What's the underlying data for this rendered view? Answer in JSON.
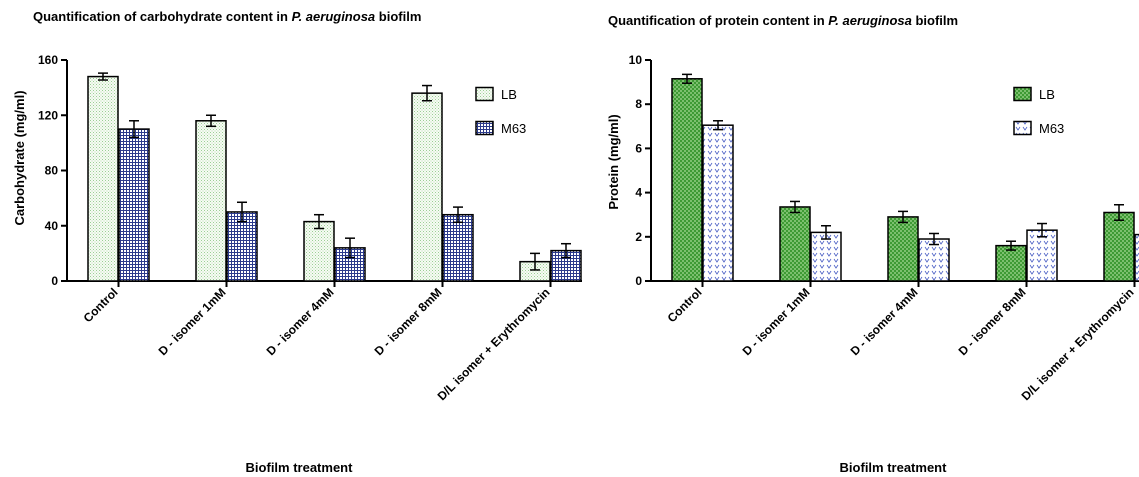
{
  "chart_data": [
    {
      "type": "bar",
      "title": {
        "prefix": "Quantification of carbohydrate content in ",
        "italic": "P. aeruginosa",
        "suffix": " biofilm"
      },
      "xlabel": "Biofilm treatment",
      "ylabel": "Carbohydrate (mg/ml)",
      "ylim": [
        0,
        160
      ],
      "yticks": [
        "0",
        "40",
        "80",
        "120",
        "160"
      ],
      "categories": [
        "Control",
        "D - isomer 1mM",
        "D - isomer 4mM",
        "D - isomer 8mM",
        "D/L isomer + Erythromycin"
      ],
      "legend_position": "top-right",
      "grid": false,
      "series": [
        {
          "name": "LB",
          "pattern": "lb-dots",
          "values": [
            148,
            116,
            43,
            136,
            14
          ],
          "errors": [
            2.5,
            4,
            5,
            5.5,
            6
          ]
        },
        {
          "name": "M63",
          "pattern": "m63-grid",
          "values": [
            110,
            50,
            24,
            48,
            22
          ],
          "errors": [
            6,
            7,
            7,
            5.5,
            5
          ]
        }
      ]
    },
    {
      "type": "bar",
      "title": {
        "prefix": "Quantification of protein content in ",
        "italic": "P. aeruginosa",
        "suffix": " biofilm"
      },
      "xlabel": "Biofilm treatment",
      "ylabel": "Protein (mg/ml)",
      "ylim": [
        0,
        10
      ],
      "yticks": [
        "0",
        "2",
        "4",
        "6",
        "8",
        "10"
      ],
      "categories": [
        "Control",
        "D - isomer 1mM",
        "D - isomer 4mM",
        "D - isomer 8mM",
        "D/L isomer + Erythromycin"
      ],
      "legend_position": "top-right",
      "grid": false,
      "series": [
        {
          "name": "LB",
          "pattern": "green-check",
          "values": [
            9.15,
            3.35,
            2.9,
            1.6,
            3.1
          ],
          "errors": [
            0.2,
            0.25,
            0.25,
            0.2,
            0.35
          ]
        },
        {
          "name": "M63",
          "pattern": "blue-vees",
          "values": [
            7.05,
            2.2,
            1.9,
            2.3,
            2.1
          ],
          "errors": [
            0.2,
            0.3,
            0.25,
            0.3,
            0.25
          ]
        }
      ]
    }
  ]
}
